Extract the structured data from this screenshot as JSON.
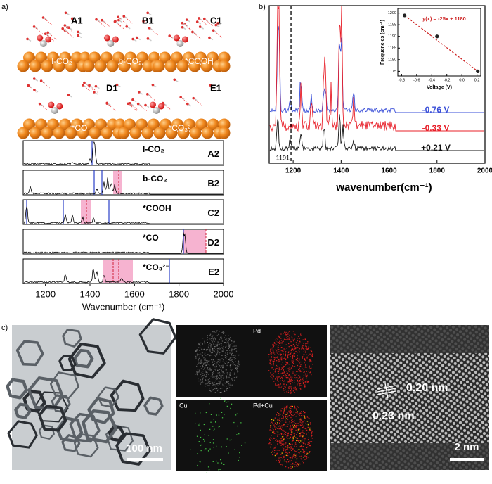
{
  "panel_a": {
    "label": "a)",
    "snapshots": [
      {
        "tag": "A1",
        "name": "l-CO₂"
      },
      {
        "tag": "B1",
        "name": "b-CO₂"
      },
      {
        "tag": "C1",
        "name": "*COOH"
      },
      {
        "tag": "D1",
        "name": "*CO"
      },
      {
        "tag": "E1",
        "name": "*CO₃²⁻"
      }
    ],
    "spectra": [
      {
        "tag": "A2",
        "name": "l-CO₂"
      },
      {
        "tag": "B2",
        "name": "b-CO₂"
      },
      {
        "tag": "C2",
        "name": "*COOH"
      },
      {
        "tag": "D2",
        "name": "*CO"
      },
      {
        "tag": "E2",
        "name": "*CO₃²⁻"
      }
    ],
    "xlim": [
      1100,
      2000
    ],
    "xticks": [
      1200,
      1400,
      1600,
      1800,
      2000
    ],
    "xlabel": "Wavenumber (cm⁻¹)"
  },
  "panel_b": {
    "label": "b)",
    "xlim": [
      1100,
      2000
    ],
    "xticks": [
      1200,
      1400,
      1600,
      1800,
      2000
    ],
    "xlabel": "wavenumber(cm⁻¹)",
    "series_labels": [
      {
        "text": "-0.76 V",
        "color": "#3a4fd8"
      },
      {
        "text": "-0.33 V",
        "color": "#e8202a"
      },
      {
        "text": "+0.21 V",
        "color": "#111111"
      }
    ],
    "marker_line": 1191,
    "inset": {
      "type": "scatter",
      "x": [
        -0.76,
        -0.33,
        0.21
      ],
      "values": [
        1199,
        1190,
        1175
      ],
      "xlim": [
        -0.85,
        0.25
      ],
      "ylim": [
        1173,
        1202
      ],
      "xticks": [
        -0.8,
        -0.6,
        -0.4,
        -0.2,
        {
          "value": 0,
          "label": "0.0"
        },
        0.2
      ],
      "yticks": [
        1175,
        1180,
        1185,
        1190,
        1195,
        1200
      ],
      "xlabel": "Voltage (V)",
      "ylabel": "Frequencies (cm⁻¹)",
      "equation": "y(x) = -25x + 1180",
      "color": "#cc1f1f"
    }
  },
  "panel_c": {
    "label": "c)",
    "tem_scale": "100 nm",
    "eds_labels": [
      "Pd",
      "Cu",
      "Pd+Cu"
    ],
    "hrtem_scale": "2 nm",
    "lattice_spacings": [
      "0.20 nm",
      "0.23 nm"
    ]
  }
}
